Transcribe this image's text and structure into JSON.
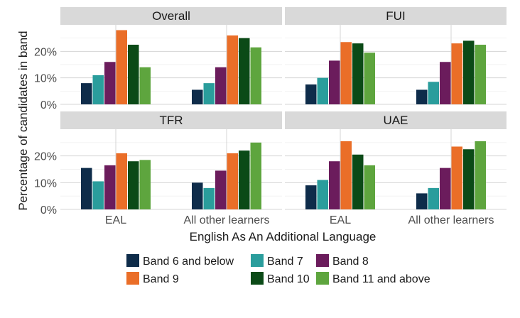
{
  "chart_data": {
    "type": "bar",
    "xlabel": "English As An Additional Language",
    "ylabel": "Percentage of candidates in band",
    "categories": [
      "EAL",
      "All other learners"
    ],
    "ylim": [
      0,
      0.3
    ],
    "yticks": [
      "0%",
      "10%",
      "20%"
    ],
    "legend_position": "bottom",
    "series_names": [
      "Band 6 and below",
      "Band 7",
      "Band 8",
      "Band 9",
      "Band 10",
      "Band 11 and above"
    ],
    "colors": [
      "#0e2c4a",
      "#2a9d9c",
      "#6b1c5c",
      "#ea6e28",
      "#0b4a17",
      "#5ea53e"
    ],
    "panels": [
      {
        "title": "Overall",
        "values": [
          [
            0.08,
            0.11,
            0.16,
            0.28,
            0.225,
            0.14
          ],
          [
            0.055,
            0.08,
            0.14,
            0.26,
            0.25,
            0.215
          ]
        ]
      },
      {
        "title": "FUI",
        "values": [
          [
            0.075,
            0.1,
            0.165,
            0.235,
            0.23,
            0.195
          ],
          [
            0.055,
            0.085,
            0.16,
            0.23,
            0.24,
            0.225
          ]
        ]
      },
      {
        "title": "TFR",
        "values": [
          [
            0.155,
            0.105,
            0.165,
            0.21,
            0.18,
            0.185
          ],
          [
            0.1,
            0.08,
            0.145,
            0.21,
            0.22,
            0.25
          ]
        ]
      },
      {
        "title": "UAE",
        "values": [
          [
            0.09,
            0.11,
            0.18,
            0.255,
            0.205,
            0.165
          ],
          [
            0.06,
            0.08,
            0.155,
            0.235,
            0.225,
            0.255
          ]
        ]
      }
    ]
  }
}
